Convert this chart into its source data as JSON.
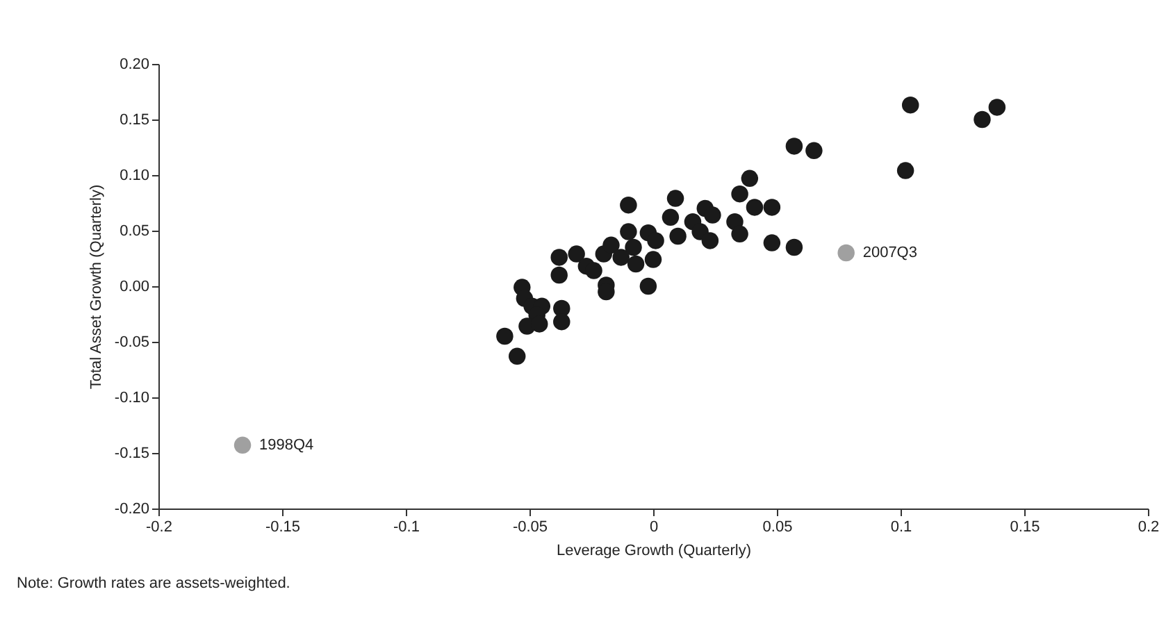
{
  "chart_data": {
    "type": "scatter",
    "xlabel": "Leverage Growth (Quarterly)",
    "ylabel": "Total Asset Growth (Quarterly)",
    "series": [
      {
        "color": "#1a1a1a",
        "x": [
          -0.06,
          -0.055,
          -0.053,
          -0.052,
          -0.049,
          -0.045,
          -0.047,
          -0.051,
          -0.046,
          -0.037,
          -0.037,
          -0.038,
          -0.031,
          -0.038,
          -0.027,
          -0.024,
          -0.02,
          -0.017,
          -0.013,
          -0.019,
          -0.019,
          -0.01,
          -0.01,
          -0.008,
          -0.007,
          -0.002,
          0.001,
          0.0,
          -0.002,
          0.009,
          0.007,
          0.01,
          0.016,
          0.019,
          0.021,
          0.024,
          0.023,
          0.033,
          0.035,
          0.035,
          0.039,
          0.041,
          0.048,
          0.048,
          0.057,
          0.057,
          0.065,
          0.104,
          0.102,
          0.139,
          0.133
        ],
        "values": [
          -0.045,
          -0.063,
          -0.001,
          -0.011,
          -0.018,
          -0.018,
          -0.026,
          -0.036,
          -0.034,
          -0.02,
          -0.032,
          0.026,
          0.029,
          0.01,
          0.018,
          0.014,
          0.029,
          0.037,
          0.026,
          0.001,
          -0.005,
          0.073,
          0.049,
          0.035,
          0.02,
          0.048,
          0.041,
          0.024,
          0.0,
          0.079,
          0.062,
          0.045,
          0.058,
          0.049,
          0.07,
          0.064,
          0.041,
          0.058,
          0.047,
          0.083,
          0.097,
          0.071,
          0.071,
          0.039,
          0.035,
          0.126,
          0.122,
          0.163,
          0.104,
          0.161,
          0.15
        ]
      },
      {
        "color": "#a0a0a0",
        "x": [
          -0.166,
          0.078
        ],
        "values": [
          -0.143,
          0.03
        ]
      }
    ],
    "xlim": [
      -0.2,
      0.2
    ],
    "xticks": [
      -0.2,
      -0.15,
      -0.1,
      -0.05,
      0,
      0.05,
      0.1,
      0.15,
      0.2
    ],
    "ylim": [
      -0.2,
      0.2
    ],
    "yticks": [
      {
        "value": -0.2,
        "label": "-0.20"
      },
      {
        "value": -0.15,
        "label": "-0.15"
      },
      {
        "value": -0.1,
        "label": "-0.10"
      },
      {
        "value": -0.05,
        "label": "-0.05"
      },
      {
        "value": 0,
        "label": "0.00"
      },
      {
        "value": 0.05,
        "label": "0.05"
      },
      {
        "value": 0.1,
        "label": "0.10"
      },
      {
        "value": 0.15,
        "label": "0.15"
      },
      {
        "value": 0.2,
        "label": "0.20"
      }
    ],
    "marker": "circle",
    "grid": false,
    "legend": false,
    "annotations": [
      {
        "text": "1998Q4",
        "x": -0.166,
        "y": -0.143
      },
      {
        "text": "2007Q3",
        "x": 0.078,
        "y": 0.03
      },
      "Note: Growth rates are assets-weighted."
    ]
  }
}
